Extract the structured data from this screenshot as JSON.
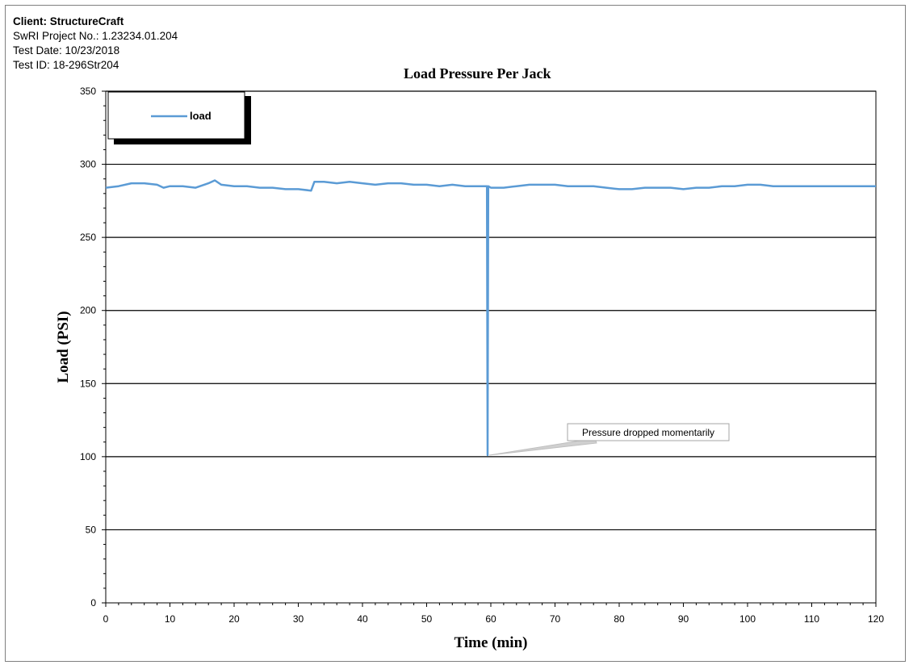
{
  "header": {
    "client": "Client: StructureCraft",
    "project": "SwRI Project No.: 1.23234.01.204",
    "test_date": "Test Date: 10/23/2018",
    "test_id": "Test ID: 18-296Str204"
  },
  "chart_data": {
    "type": "line",
    "title": "Load Pressure Per Jack",
    "xlabel": "Time (min)",
    "ylabel": "Load (PSI)",
    "xlim": [
      0,
      120
    ],
    "ylim": [
      0,
      350
    ],
    "x_ticks": [
      0,
      10,
      20,
      30,
      40,
      50,
      60,
      70,
      80,
      90,
      100,
      110,
      120
    ],
    "y_ticks": [
      0,
      50,
      100,
      150,
      200,
      250,
      300,
      350
    ],
    "grid": "horizontal",
    "legend_position": "top-left",
    "annotation": {
      "text": "Pressure dropped momentarily",
      "x": 59.5,
      "y": 101
    },
    "series": [
      {
        "name": "load",
        "color": "#5b9bd5",
        "x": [
          0,
          2,
          4,
          6,
          8,
          9,
          10,
          12,
          14,
          16,
          17,
          18,
          20,
          22,
          24,
          26,
          28,
          30,
          32,
          32.5,
          34,
          36,
          38,
          40,
          42,
          44,
          46,
          48,
          50,
          52,
          54,
          56,
          58,
          59.4,
          59.5,
          59.6,
          60,
          62,
          64,
          66,
          68,
          70,
          72,
          74,
          76,
          78,
          80,
          82,
          84,
          86,
          88,
          90,
          92,
          94,
          96,
          98,
          100,
          102,
          104,
          106,
          108,
          110,
          112,
          114,
          116,
          118,
          120
        ],
        "y": [
          284,
          285,
          287,
          287,
          286,
          284,
          285,
          285,
          284,
          287,
          289,
          286,
          285,
          285,
          284,
          284,
          283,
          283,
          282,
          288,
          288,
          287,
          288,
          287,
          286,
          287,
          287,
          286,
          286,
          285,
          286,
          285,
          285,
          285,
          101,
          285,
          284,
          284,
          285,
          286,
          286,
          286,
          285,
          285,
          285,
          284,
          283,
          283,
          284,
          284,
          284,
          283,
          284,
          284,
          285,
          285,
          286,
          286,
          285,
          285,
          285,
          285,
          285,
          285,
          285,
          285,
          285
        ]
      }
    ]
  }
}
